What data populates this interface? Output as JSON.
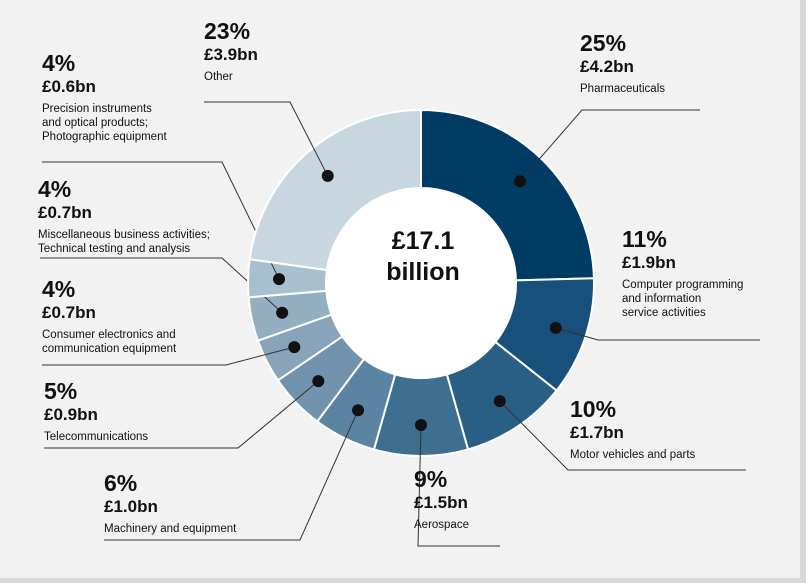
{
  "chart_data": {
    "type": "pie",
    "donut": true,
    "center_label": [
      "£17.1",
      "billion"
    ],
    "categories": [
      "Pharmaceuticals",
      "Computer programming and information service activities",
      "Motor vehicles and parts",
      "Aerospace",
      "Machinery and equipment",
      "Telecommunications",
      "Consumer electronics and communication equipment",
      "Miscellaneous business activities; Technical testing and analysis",
      "Precision instruments and optical products; Photographic equipment",
      "Other"
    ],
    "values": [
      4.2,
      1.9,
      1.7,
      1.5,
      1.0,
      0.9,
      0.7,
      0.7,
      0.6,
      3.9
    ],
    "percent_labels": [
      "25%",
      "11%",
      "10%",
      "9%",
      "6%",
      "5%",
      "4%",
      "4%",
      "4%",
      "23%"
    ],
    "value_labels": [
      "£4.2bn",
      "£1.9bn",
      "£1.7bn",
      "£1.5bn",
      "£1.0bn",
      "£0.9bn",
      "£0.7bn",
      "£0.7bn",
      "£0.6bn",
      "£3.9bn"
    ],
    "category_label_lines": [
      [
        "Pharmaceuticals"
      ],
      [
        "Computer programming",
        "and information",
        "service activities"
      ],
      [
        "Motor vehicles and parts"
      ],
      [
        "Aerospace"
      ],
      [
        "Machinery and equipment"
      ],
      [
        "Telecommunications"
      ],
      [
        "Consumer electronics and",
        "communication equipment"
      ],
      [
        "Miscellaneous business activities;",
        "Technical testing and analysis"
      ],
      [
        "Precision instruments",
        "and optical products;",
        "Photographic equipment"
      ],
      [
        "Other"
      ]
    ],
    "colors": [
      "#003b63",
      "#17507a",
      "#2a5f85",
      "#3f6f90",
      "#5a84a2",
      "#7293ad",
      "#88a4ba",
      "#94afc2",
      "#a8bfcf",
      "#c8d6e0"
    ]
  }
}
